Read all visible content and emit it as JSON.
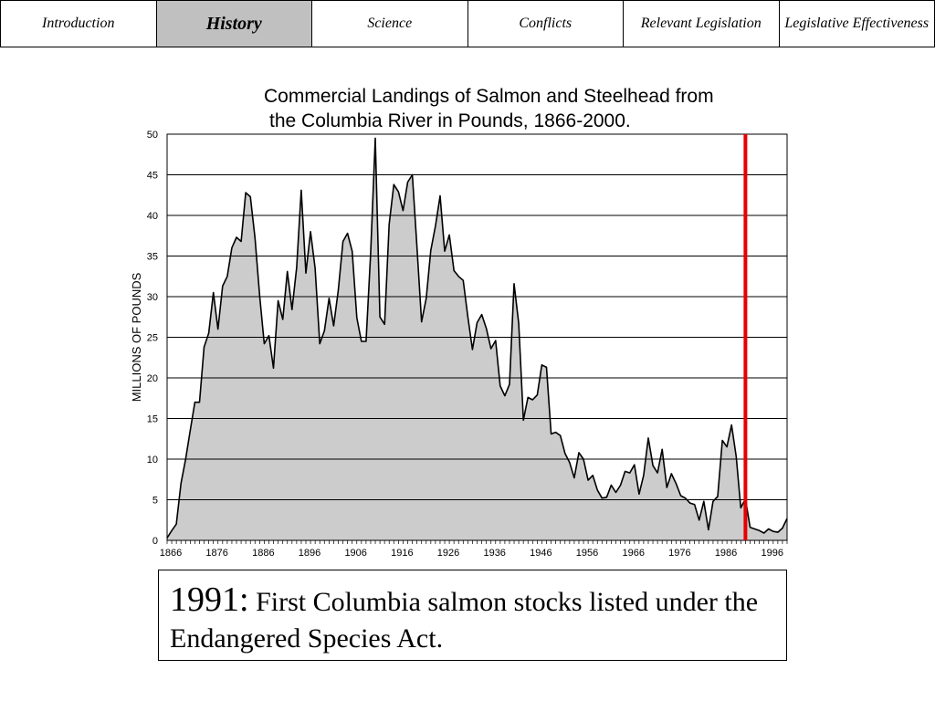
{
  "tabs": [
    {
      "label": "Introduction",
      "active": false
    },
    {
      "label": "History",
      "active": true
    },
    {
      "label": "Science",
      "active": false
    },
    {
      "label": "Conflicts",
      "active": false
    },
    {
      "label": "Relevant Legislation",
      "active": false
    },
    {
      "label": "Legislative Effectiveness",
      "active": false
    }
  ],
  "caption": {
    "year": "1991:",
    "text": "First Columbia salmon stocks listed under the Endangered Species Act."
  },
  "colors": {
    "fill": "#cccccc",
    "line": "#000000",
    "marker_line": "#e60000",
    "active_tab": "#c0c0c0"
  },
  "chart_data": {
    "type": "area",
    "title_line1": "Commercial Landings of Salmon and Steelhead from",
    "title_line2": "the Columbia River in Pounds, 1866-2000.",
    "xlabel": "",
    "ylabel": "MILLIONS OF POUNDS",
    "xlim": [
      1866,
      2000
    ],
    "ylim": [
      0,
      50
    ],
    "yticks": [
      0,
      5,
      10,
      15,
      20,
      25,
      30,
      35,
      40,
      45,
      50
    ],
    "xtick_labels": [
      "1866",
      "1876",
      "1886",
      "1896",
      "1906",
      "1916",
      "1926",
      "1936",
      "1946",
      "1956",
      "1966",
      "1976",
      "1986",
      "1996"
    ],
    "grid": "horizontal",
    "marker": {
      "x": 1991,
      "label": "1991"
    },
    "x": [
      1866,
      1867,
      1868,
      1869,
      1870,
      1871,
      1872,
      1873,
      1874,
      1875,
      1876,
      1877,
      1878,
      1879,
      1880,
      1881,
      1882,
      1883,
      1884,
      1885,
      1886,
      1887,
      1888,
      1889,
      1890,
      1891,
      1892,
      1893,
      1894,
      1895,
      1896,
      1897,
      1898,
      1899,
      1900,
      1901,
      1902,
      1903,
      1904,
      1905,
      1906,
      1907,
      1908,
      1909,
      1910,
      1911,
      1912,
      1913,
      1914,
      1915,
      1916,
      1917,
      1918,
      1919,
      1920,
      1921,
      1922,
      1923,
      1924,
      1925,
      1926,
      1927,
      1928,
      1929,
      1930,
      1931,
      1932,
      1933,
      1934,
      1935,
      1936,
      1937,
      1938,
      1939,
      1940,
      1941,
      1942,
      1943,
      1944,
      1945,
      1946,
      1947,
      1948,
      1949,
      1950,
      1951,
      1952,
      1953,
      1954,
      1955,
      1956,
      1957,
      1958,
      1959,
      1960,
      1961,
      1962,
      1963,
      1964,
      1965,
      1966,
      1967,
      1968,
      1969,
      1970,
      1971,
      1972,
      1973,
      1974,
      1975,
      1976,
      1977,
      1978,
      1979,
      1980,
      1981,
      1982,
      1983,
      1984,
      1985,
      1986,
      1987,
      1988,
      1989,
      1990,
      1991,
      1992,
      1993,
      1994,
      1995,
      1996,
      1997,
      1998,
      1999,
      2000
    ],
    "y": [
      0.3,
      1.2,
      2.0,
      7.0,
      10.0,
      13.5,
      17.0,
      17.0,
      23.8,
      25.5,
      30.5,
      26.0,
      31.3,
      32.5,
      36.0,
      37.3,
      36.8,
      42.8,
      42.3,
      37.2,
      30.2,
      24.2,
      25.2,
      21.2,
      29.5,
      27.2,
      33.1,
      28.4,
      33.6,
      43.1,
      32.9,
      38.0,
      33.5,
      24.2,
      25.8,
      29.8,
      26.4,
      30.8,
      36.8,
      37.8,
      35.6,
      27.4,
      24.5,
      24.5,
      35.5,
      49.5,
      27.5,
      26.6,
      38.9,
      43.8,
      42.9,
      40.6,
      44.1,
      45.0,
      36.2,
      26.9,
      29.8,
      35.7,
      38.7,
      42.4,
      35.6,
      37.6,
      33.2,
      32.5,
      32.0,
      27.5,
      23.5,
      26.8,
      27.8,
      26.1,
      23.6,
      24.6,
      19.0,
      17.8,
      19.2,
      31.6,
      26.7,
      14.8,
      17.6,
      17.3,
      17.9,
      21.6,
      21.3,
      13.1,
      13.3,
      12.9,
      10.7,
      9.6,
      7.7,
      10.8,
      10.0,
      7.4,
      8.0,
      6.2,
      5.2,
      5.3,
      6.8,
      5.9,
      6.8,
      8.5,
      8.3,
      9.3,
      5.7,
      8.0,
      12.6,
      9.2,
      8.3,
      11.2,
      6.5,
      8.2,
      7.0,
      5.5,
      5.2,
      4.6,
      4.4,
      2.5,
      4.8,
      1.3,
      4.8,
      5.4,
      12.3,
      11.5,
      14.2,
      10.3,
      4.0,
      5.1,
      1.6,
      1.4,
      1.2,
      0.9,
      1.4,
      1.1,
      1.0,
      1.5,
      2.7
    ]
  }
}
